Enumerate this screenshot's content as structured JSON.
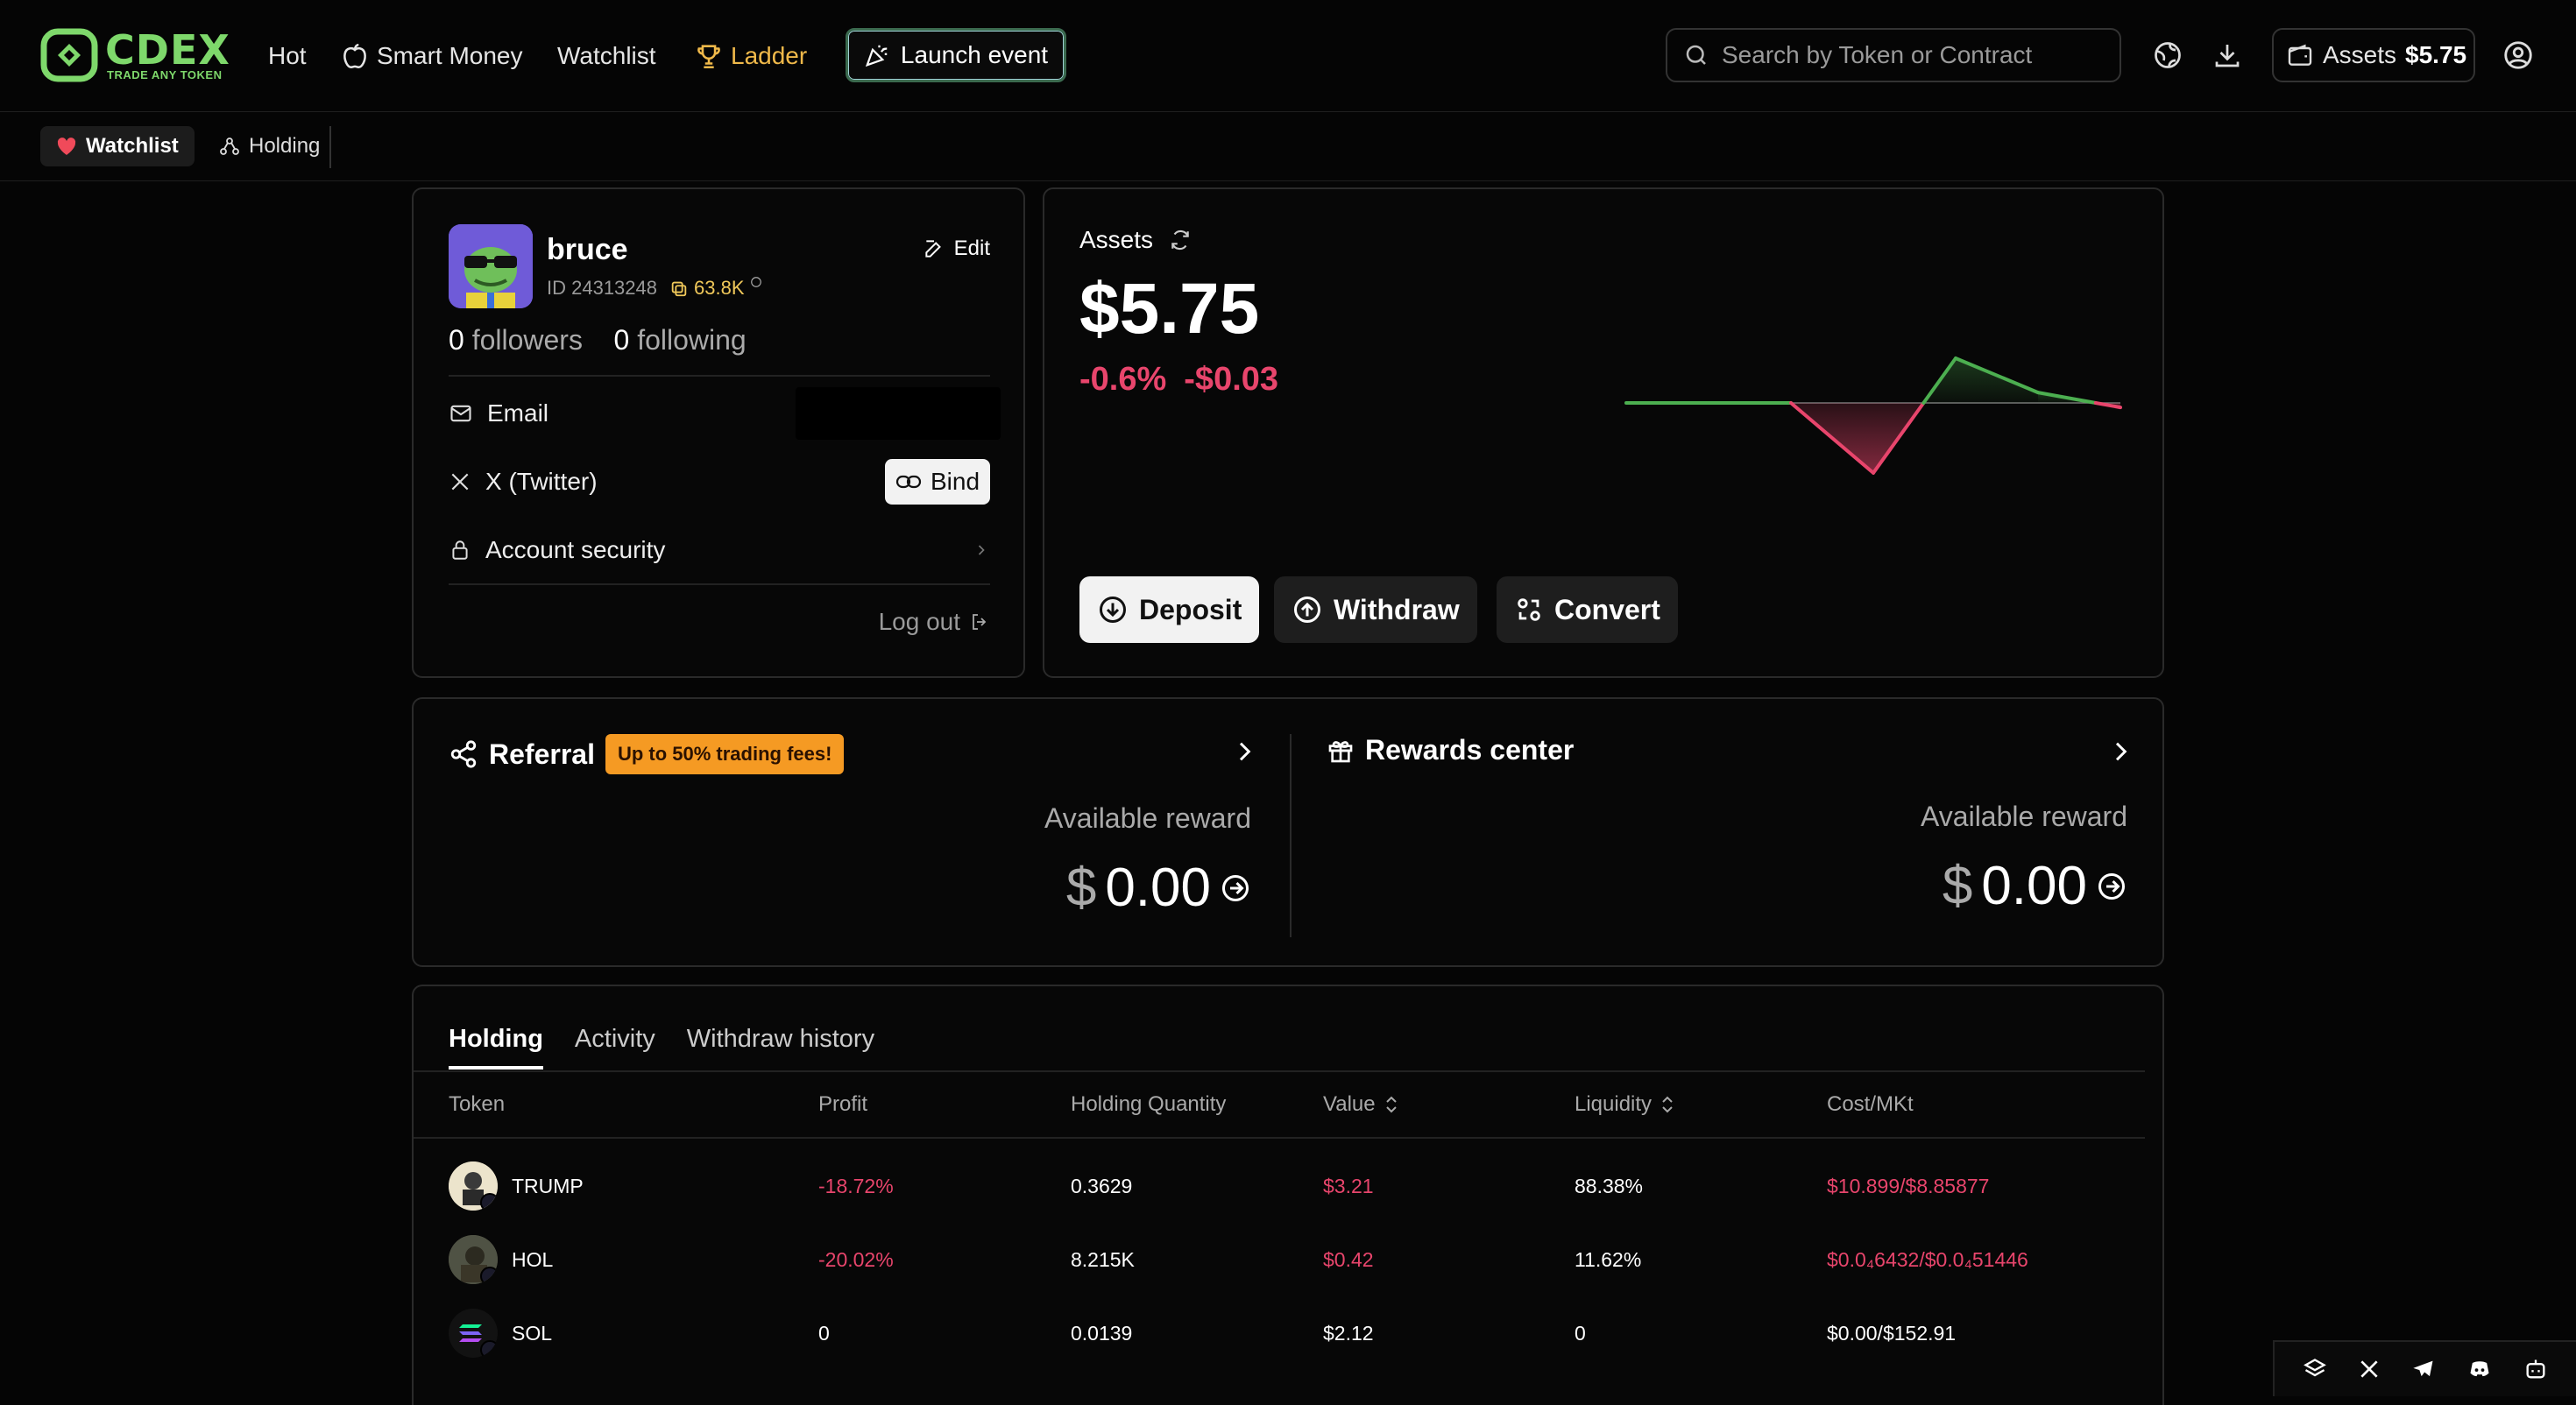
{
  "brand": {
    "name": "CDEX",
    "tagline": "TRADE ANY TOKEN",
    "color": "#7ed86b"
  },
  "nav": {
    "hot": "Hot",
    "smart_money": "Smart Money",
    "watchlist": "Watchlist",
    "ladder": "Ladder",
    "launch": "Launch event"
  },
  "search": {
    "placeholder": "Search by Token or Contract"
  },
  "header": {
    "assets_label": "Assets",
    "assets_value": "$5.75"
  },
  "subnav": {
    "watchlist": "Watchlist",
    "holding": "Holding"
  },
  "profile": {
    "username": "bruce",
    "id": "ID 24313248",
    "points": "63.8K",
    "edit": "Edit",
    "followers_count": "0",
    "followers_label": "followers",
    "following_count": "0",
    "following_label": "following",
    "email_label": "Email",
    "twitter_label": "X (Twitter)",
    "bind_label": "Bind",
    "security_label": "Account security",
    "logout_label": "Log out"
  },
  "assets": {
    "title": "Assets",
    "value": "$5.75",
    "change_pct": "-0.6%",
    "change_abs": "-$0.03",
    "deposit": "Deposit",
    "withdraw": "Withdraw",
    "convert": "Convert"
  },
  "chart_data": {
    "type": "line",
    "x": [
      0,
      1,
      2,
      3,
      4,
      5,
      6
    ],
    "values": [
      0,
      0,
      0,
      -0.47,
      0.3,
      0.07,
      -0.03
    ],
    "colors": {
      "up": "#4caf50",
      "down": "#e8456c"
    }
  },
  "referral": {
    "title": "Referral",
    "badge": "Up to 50% trading fees!",
    "available": "Available reward",
    "currency": "$",
    "amount": "0.00"
  },
  "rewards": {
    "title": "Rewards center",
    "available": "Available reward",
    "currency": "$",
    "amount": "0.00"
  },
  "holdings": {
    "tabs": [
      "Holding",
      "Activity",
      "Withdraw history"
    ],
    "columns": [
      "Token",
      "Profit",
      "Holding Quantity",
      "Value",
      "Liquidity",
      "Cost/MKt"
    ],
    "rows": [
      {
        "token": "TRUMP",
        "profit": "-18.72%",
        "qty": "0.3629",
        "value": "$3.21",
        "liquidity": "88.38%",
        "cost": "$10.899/$8.85877"
      },
      {
        "token": "HOL",
        "profit": "-20.02%",
        "qty": "8.215K",
        "value": "$0.42",
        "liquidity": "11.62%",
        "cost": "$0.0₄6432/$0.0₄51446"
      },
      {
        "token": "SOL",
        "profit": "0",
        "qty": "0.0139",
        "value": "$2.12",
        "liquidity": "0",
        "cost": "$0.00/$152.91"
      }
    ]
  }
}
